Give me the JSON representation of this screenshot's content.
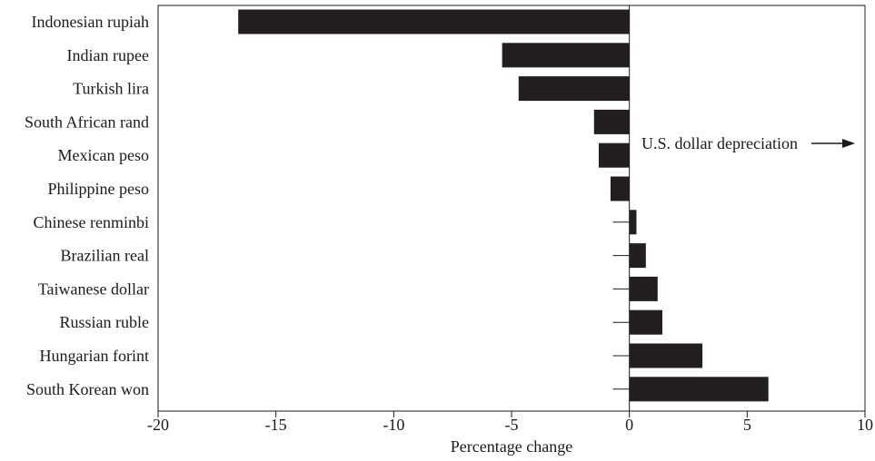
{
  "chart_data": {
    "type": "bar",
    "orientation": "horizontal",
    "categories": [
      "Indonesian rupiah",
      "Indian rupee",
      "Turkish lira",
      "South African rand",
      "Mexican peso",
      "Philippine peso",
      "Chinese renminbi",
      "Brazilian real",
      "Taiwanese dollar",
      "Russian ruble",
      "Hungarian forint",
      "South Korean won"
    ],
    "values": [
      -16.6,
      -5.4,
      -4.7,
      -1.5,
      -1.3,
      -0.8,
      0.3,
      0.7,
      1.2,
      1.4,
      3.1,
      5.9
    ],
    "xlabel": "Percentage change",
    "ylabel": "",
    "xlim": [
      -20,
      10
    ],
    "xticks": [
      -20,
      -15,
      -10,
      -5,
      0,
      5,
      10
    ],
    "xtick_labels": [
      "-20",
      "-15",
      "-10",
      "-5",
      "0",
      "5",
      "10"
    ],
    "annotation": "U.S. dollar depreciation",
    "grid": false,
    "bar_color": "#231f20"
  }
}
